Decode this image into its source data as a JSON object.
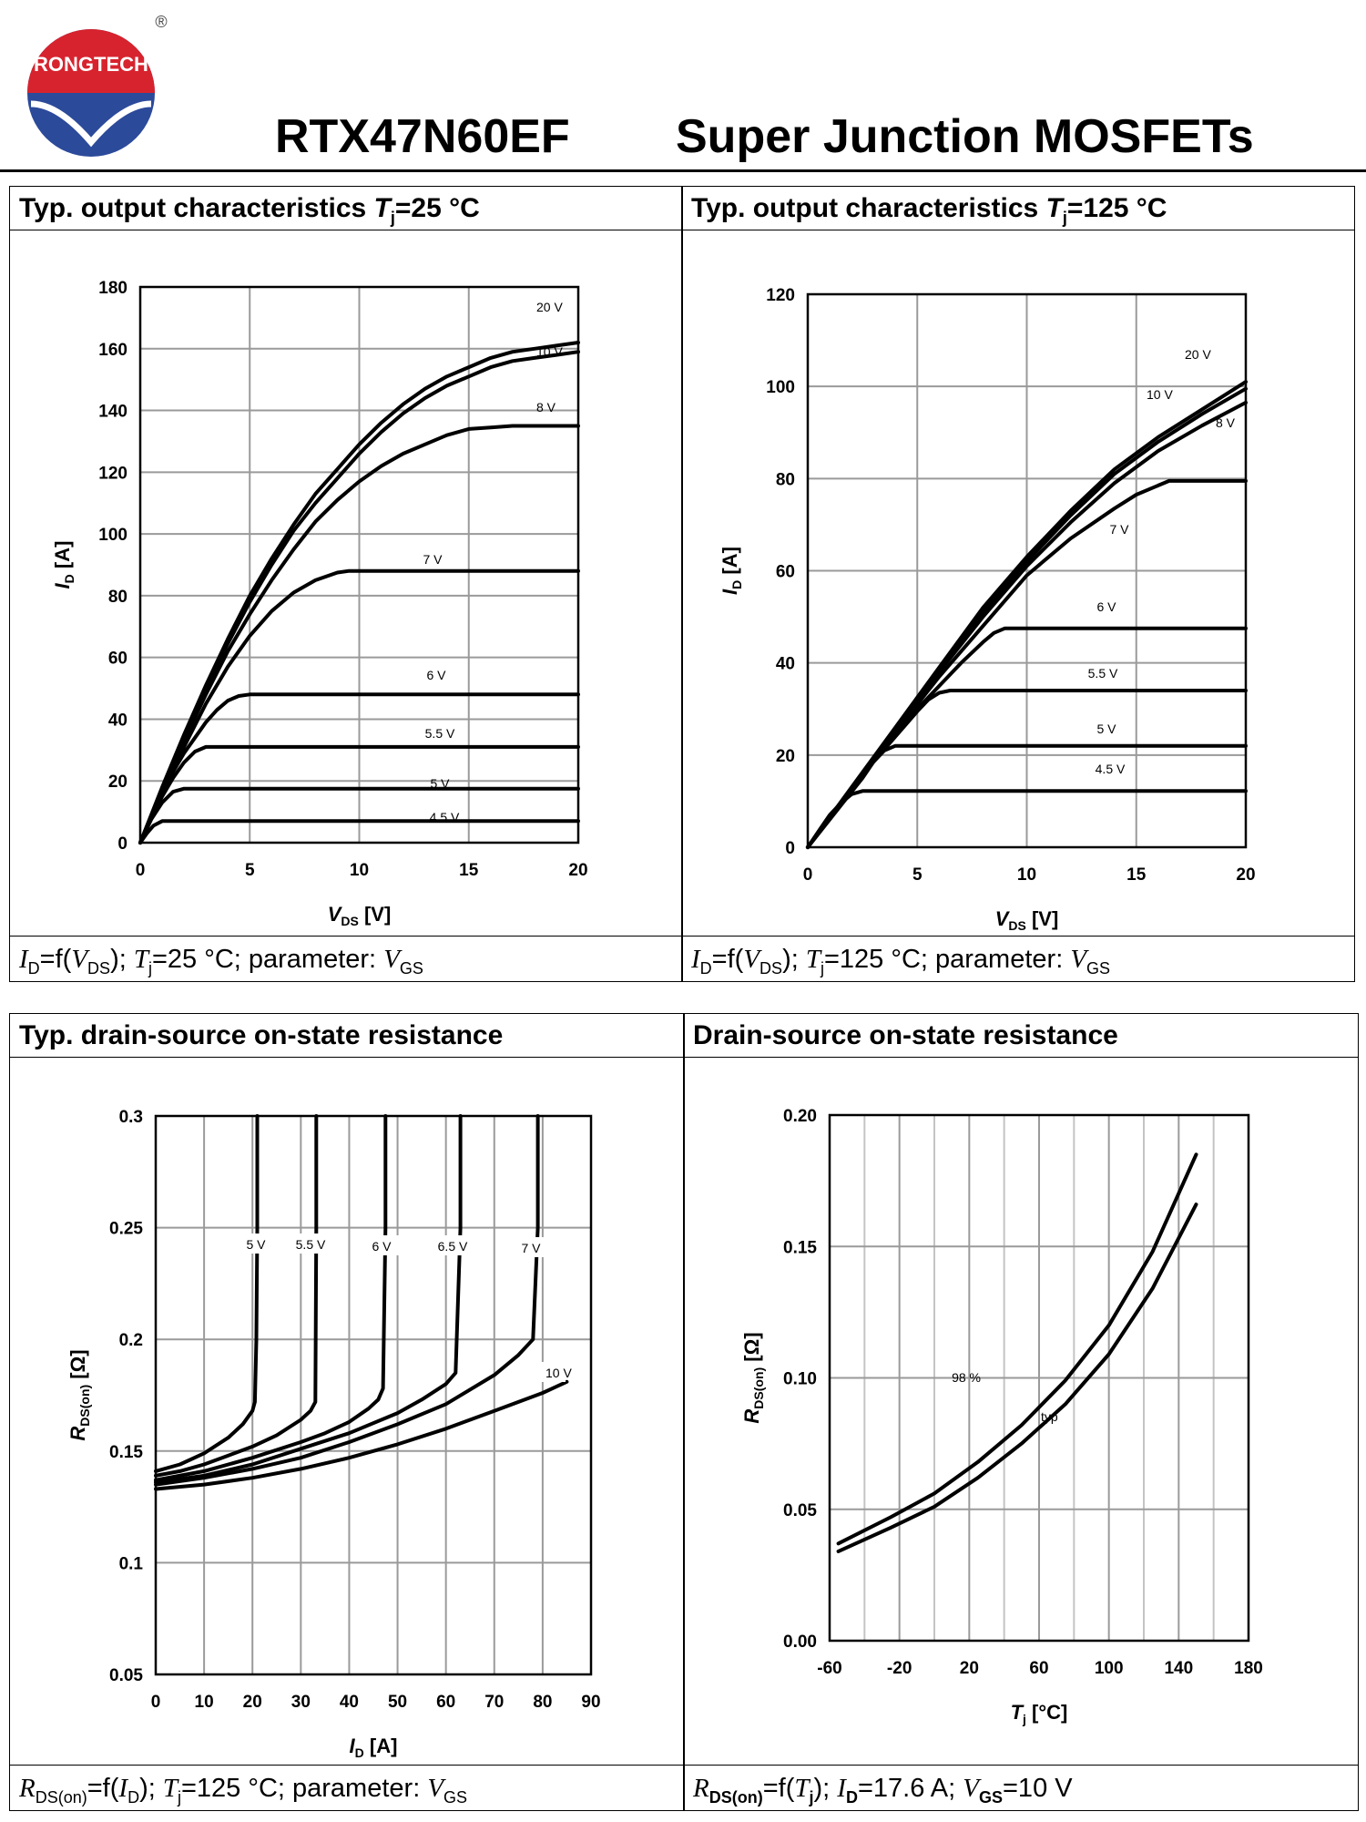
{
  "header": {
    "brand": "RONGTECH",
    "registered": "®",
    "part_number": "RTX47N60EF",
    "series": "Super Junction MOSFETs",
    "brand_colors": {
      "red": "#d7232e",
      "blue": "#2c4a9a"
    }
  },
  "panels": [
    {
      "title": "Typ. output characteristics T_j=25 °C",
      "caption": "I_D=f(V_DS); T_j=25 °C; parameter: V_GS",
      "chart_data": {
        "type": "line",
        "title": "Typ. output characteristics Tj=25 °C",
        "xlabel": "V DS [V]",
        "ylabel": "I D [A]",
        "xlim": [
          0,
          20
        ],
        "ylim": [
          0,
          180
        ],
        "xticks": [
          0,
          5,
          10,
          15,
          20
        ],
        "yticks": [
          0,
          20,
          40,
          60,
          80,
          100,
          120,
          140,
          160,
          180
        ],
        "grid": true,
        "series": [
          {
            "name": "20 V",
            "x": [
              0,
              1,
              2,
              3,
              4,
              5,
              6,
              7,
              8,
              9,
              10,
              11,
              12,
              13,
              14,
              15,
              16,
              17,
              18,
              19,
              20
            ],
            "y": [
              0,
              18,
              35,
              51,
              66,
              80,
              92,
              103,
              113,
              121,
              129,
              136,
              142,
              147,
              151,
              154,
              157,
              159,
              160,
              161,
              162
            ]
          },
          {
            "name": "10 V",
            "x": [
              0,
              1,
              2,
              3,
              4,
              5,
              6,
              7,
              8,
              9,
              10,
              11,
              12,
              13,
              14,
              15,
              16,
              17,
              18,
              19,
              20
            ],
            "y": [
              0,
              17.5,
              34,
              50,
              64.5,
              78,
              90,
              101,
              110,
              118,
              126,
              133,
              139,
              144,
              148,
              151,
              154,
              156,
              157,
              158,
              159
            ]
          },
          {
            "name": "8 V",
            "x": [
              0,
              1,
              2,
              3,
              4,
              5,
              6,
              7,
              8,
              9,
              10,
              11,
              12,
              13,
              14,
              15,
              16,
              17,
              18,
              19,
              20
            ],
            "y": [
              0,
              17,
              33,
              48,
              62,
              74,
              85,
              95,
              104,
              111,
              117,
              122,
              126,
              129,
              132,
              134,
              134.5,
              135,
              135,
              135,
              135
            ]
          },
          {
            "name": "7 V",
            "x": [
              0,
              1,
              2,
              3,
              4,
              5,
              6,
              7,
              8,
              9,
              9.5,
              10,
              15,
              20
            ],
            "y": [
              0,
              16,
              31,
              45,
              57,
              67,
              75,
              81,
              85,
              87.5,
              88,
              88,
              88,
              88
            ]
          },
          {
            "name": "6 V",
            "x": [
              0,
              0.5,
              1,
              1.5,
              2,
              2.5,
              3,
              3.5,
              4,
              4.5,
              5,
              10,
              15,
              20
            ],
            "y": [
              0,
              8,
              16,
              23,
              29,
              34,
              39,
              43,
              46,
              47.5,
              48,
              48,
              48,
              48
            ]
          },
          {
            "name": "5.5 V",
            "x": [
              0,
              0.5,
              1,
              1.5,
              2,
              2.5,
              3,
              10,
              15,
              20
            ],
            "y": [
              0,
              8,
              15,
              21,
              26,
              29.5,
              31,
              31,
              31,
              31
            ]
          },
          {
            "name": "5 V",
            "x": [
              0,
              0.5,
              1,
              1.5,
              2,
              10,
              15,
              20
            ],
            "y": [
              0,
              7.5,
              13,
              16.5,
              17.5,
              17.5,
              17.5,
              17.5
            ]
          },
          {
            "name": "4.5 V",
            "x": [
              0,
              0.3,
              0.6,
              1,
              1.3,
              10,
              15,
              20
            ],
            "y": [
              0,
              3,
              5.5,
              7,
              7,
              7,
              7,
              7
            ]
          }
        ]
      }
    },
    {
      "title": "Typ. output characteristics T_j=125 °C",
      "caption": "I_D=f(V_DS); T_j=125 °C; parameter: V_GS",
      "chart_data": {
        "type": "line",
        "title": "Typ. output characteristics Tj=125 °C",
        "xlabel": "V DS [V]",
        "ylabel": "I D [A]",
        "xlim": [
          0,
          20
        ],
        "ylim": [
          0,
          120
        ],
        "xticks": [
          0,
          5,
          10,
          15,
          20
        ],
        "yticks": [
          0,
          20,
          40,
          60,
          80,
          100,
          120
        ],
        "grid": true,
        "series": [
          {
            "name": "20 V",
            "x": [
              0,
              2,
              4,
              6,
              8,
              10,
              12,
              14,
              16,
              18,
              20
            ],
            "y": [
              0,
              13,
              26,
              39,
              52,
              63,
              73,
              82,
              89,
              95,
              101
            ]
          },
          {
            "name": "10 V",
            "x": [
              0,
              2,
              4,
              6,
              8,
              10,
              12,
              14,
              16,
              18,
              20
            ],
            "y": [
              0,
              12.8,
              25.5,
              38.5,
              51,
              62,
              72,
              81,
              88,
              94,
              99.5
            ]
          },
          {
            "name": "8 V",
            "x": [
              0,
              2,
              4,
              6,
              8,
              10,
              12,
              14,
              16,
              18,
              20
            ],
            "y": [
              0,
              12.5,
              25,
              38,
              50,
              61,
              70.5,
              79,
              86,
              91.5,
              96.5
            ]
          },
          {
            "name": "7 V",
            "x": [
              0,
              2,
              4,
              6,
              8,
              10,
              12,
              14,
              15,
              16,
              16.5,
              17,
              20
            ],
            "y": [
              0,
              12.5,
              25,
              37,
              48,
              59,
              67,
              73.5,
              76.5,
              78.5,
              79.5,
              79.5,
              79.5
            ]
          },
          {
            "name": "6 V",
            "x": [
              0,
              2,
              4,
              6,
              7,
              8,
              8.5,
              9,
              9.5,
              20
            ],
            "y": [
              0,
              12.5,
              25,
              35,
              40,
              44.5,
              46.5,
              47.5,
              47.5,
              47.5
            ]
          },
          {
            "name": "5.5 V",
            "x": [
              0,
              2,
              3,
              4,
              5,
              5.5,
              6,
              6.5,
              20
            ],
            "y": [
              0,
              12.3,
              18.5,
              24,
              29.5,
              32,
              33.5,
              34,
              34
            ]
          },
          {
            "name": "5 V",
            "x": [
              0,
              1,
              2,
              2.5,
              3,
              3.5,
              4,
              20
            ],
            "y": [
              0,
              6,
              12,
              15,
              18.5,
              21,
              22,
              22
            ]
          },
          {
            "name": "4.5 V",
            "x": [
              0,
              0.5,
              1,
              1.5,
              2,
              2.5,
              20
            ],
            "y": [
              0,
              3.5,
              7,
              9.5,
              11.5,
              12.2,
              12.2
            ]
          }
        ]
      }
    },
    {
      "title": "Typ. drain-source on-state resistance",
      "caption": "R_DS(on)=f(I_D); T_j=125 °C; parameter: V_GS",
      "chart_data": {
        "type": "line",
        "title": "Typ. drain-source on-state resistance",
        "xlabel": "I D [A]",
        "ylabel": "R DS(on) [Ω]",
        "xlim": [
          0,
          90
        ],
        "ylim": [
          0.05,
          0.3
        ],
        "xticks": [
          0,
          10,
          20,
          30,
          40,
          50,
          60,
          70,
          80,
          90
        ],
        "yticks": [
          0.05,
          0.1,
          0.15,
          0.2,
          0.25,
          0.3
        ],
        "ytick_labels": [
          "0.05",
          "0.1",
          "0.15",
          "0.2",
          "0.25",
          "0.3"
        ],
        "grid": true,
        "series": [
          {
            "name": "5 V",
            "x": [
              0,
              5,
              10,
              15,
              18,
              20,
              20.5,
              20.8,
              21,
              21
            ],
            "y": [
              0.141,
              0.144,
              0.149,
              0.156,
              0.162,
              0.168,
              0.172,
              0.2,
              0.25,
              0.3
            ]
          },
          {
            "name": "5.5 V",
            "x": [
              0,
              5,
              10,
              15,
              20,
              25,
              30,
              32,
              33,
              33.2,
              33.2
            ],
            "y": [
              0.139,
              0.141,
              0.144,
              0.148,
              0.152,
              0.157,
              0.164,
              0.168,
              0.172,
              0.25,
              0.3
            ]
          },
          {
            "name": "6 V",
            "x": [
              0,
              10,
              20,
              30,
              35,
              40,
              44,
              46,
              47,
              47.5,
              47.5
            ],
            "y": [
              0.137,
              0.141,
              0.147,
              0.154,
              0.158,
              0.163,
              0.169,
              0.173,
              0.178,
              0.25,
              0.3
            ]
          },
          {
            "name": "6.5 V",
            "x": [
              0,
              10,
              20,
              30,
              40,
              50,
              55,
              60,
              62,
              63,
              63
            ],
            "y": [
              0.136,
              0.139,
              0.144,
              0.151,
              0.158,
              0.167,
              0.173,
              0.18,
              0.185,
              0.25,
              0.3
            ]
          },
          {
            "name": "7 V",
            "x": [
              0,
              10,
              20,
              30,
              40,
              50,
              60,
              70,
              75,
              78,
              79,
              79
            ],
            "y": [
              0.135,
              0.138,
              0.142,
              0.147,
              0.154,
              0.162,
              0.171,
              0.184,
              0.193,
              0.2,
              0.25,
              0.3
            ]
          },
          {
            "name": "10 V",
            "x": [
              0,
              10,
              20,
              30,
              40,
              50,
              60,
              70,
              80,
              85
            ],
            "y": [
              0.133,
              0.135,
              0.138,
              0.142,
              0.147,
              0.153,
              0.16,
              0.168,
              0.176,
              0.181
            ]
          }
        ],
        "annotations": [
          "5 V",
          "5.5 V",
          "6 V",
          "6.5 V",
          "7 V",
          "10 V"
        ]
      }
    },
    {
      "title": "Drain-source on-state resistance",
      "caption": "R_DS(on)=f(T_j); I_D=17.6 A; V_GS=10 V",
      "chart_data": {
        "type": "line",
        "title": "Drain-source on-state resistance",
        "xlabel": "T j [°C]",
        "ylabel": "R DS(on) [Ω]",
        "xlim": [
          -60,
          180
        ],
        "ylim": [
          0.0,
          0.2
        ],
        "xticks": [
          -60,
          -20,
          20,
          60,
          100,
          140,
          180
        ],
        "yticks": [
          0.0,
          0.05,
          0.1,
          0.15,
          0.2
        ],
        "ytick_labels": [
          "0.00",
          "0.05",
          "0.10",
          "0.15",
          "0.20"
        ],
        "grid": true,
        "series": [
          {
            "name": "98 %",
            "x": [
              -55,
              -25,
              0,
              25,
              50,
              75,
              100,
              125,
              150
            ],
            "y": [
              0.037,
              0.047,
              0.056,
              0.068,
              0.082,
              0.099,
              0.12,
              0.148,
              0.185
            ]
          },
          {
            "name": "typ",
            "x": [
              -55,
              -25,
              0,
              25,
              50,
              75,
              100,
              125,
              150
            ],
            "y": [
              0.034,
              0.043,
              0.051,
              0.062,
              0.075,
              0.09,
              0.109,
              0.134,
              0.166
            ]
          }
        ],
        "annotations": [
          "98 %",
          "typ"
        ]
      }
    }
  ]
}
